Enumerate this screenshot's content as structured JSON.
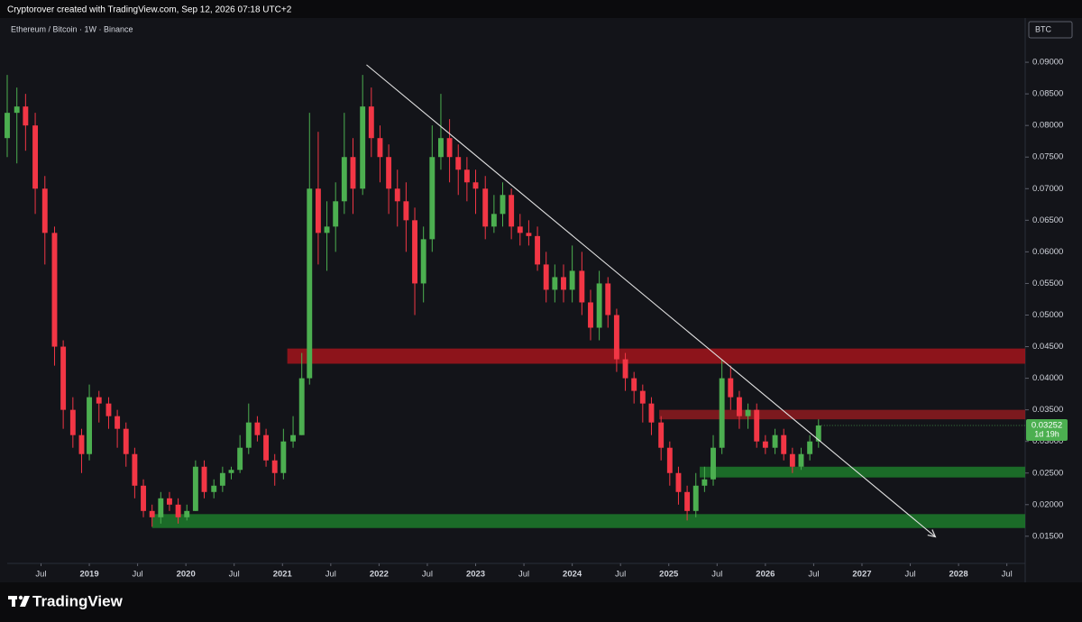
{
  "header": "Cryptorover created with TradingView.com, Sep 12, 2026 07:18 UTC+2",
  "logo": "TradingView",
  "chart_data": {
    "type": "candlestick",
    "title": "Ethereum / Bitcoin · 1W · Binance",
    "currency": "BTC",
    "up_color": "#4caf50",
    "down_color": "#f23645",
    "xlim": [
      2018.15,
      2028.69
    ],
    "ylim": [
      0.0107,
      0.097
    ],
    "xticks": [
      {
        "value": 2018.5,
        "label": "Jul"
      },
      2019,
      {
        "value": 2019.5,
        "label": "Jul"
      },
      2020,
      {
        "value": 2020.5,
        "label": "Jul"
      },
      2021,
      {
        "value": 2021.5,
        "label": "Jul"
      },
      2022,
      {
        "value": 2022.5,
        "label": "Jul"
      },
      2023,
      {
        "value": 2023.5,
        "label": "Jul"
      },
      2024,
      {
        "value": 2024.5,
        "label": "Jul"
      },
      2025,
      {
        "value": 2025.5,
        "label": "Jul"
      },
      2026,
      {
        "value": 2026.5,
        "label": "Jul"
      },
      2027,
      {
        "value": 2027.5,
        "label": "Jul"
      },
      2028,
      {
        "value": 2028.5,
        "label": "Jul"
      }
    ],
    "yticks": [
      {
        "value": 0.015,
        "label": "0.01500"
      },
      {
        "value": 0.02,
        "label": "0.02000"
      },
      {
        "value": 0.025,
        "label": "0.02500"
      },
      {
        "value": 0.03,
        "label": "0.03000"
      },
      {
        "value": 0.035,
        "label": "0.03500"
      },
      {
        "value": 0.04,
        "label": "0.04000"
      },
      {
        "value": 0.045,
        "label": "0.04500"
      },
      {
        "value": 0.05,
        "label": "0.05000"
      },
      {
        "value": 0.055,
        "label": "0.05500"
      },
      {
        "value": 0.06,
        "label": "0.06000"
      },
      {
        "value": 0.065,
        "label": "0.06500"
      },
      {
        "value": 0.07,
        "label": "0.07000"
      },
      {
        "value": 0.075,
        "label": "0.07500"
      },
      {
        "value": 0.08,
        "label": "0.08000"
      },
      {
        "value": 0.085,
        "label": "0.08500"
      },
      {
        "value": 0.09,
        "label": "0.09000"
      }
    ],
    "grid": false,
    "x": [
      2018.15,
      2018.25,
      2018.34,
      2018.44,
      2018.54,
      2018.64,
      2018.73,
      2018.83,
      2018.92,
      2019.0,
      2019.1,
      2019.2,
      2019.29,
      2019.38,
      2019.47,
      2019.56,
      2019.65,
      2019.74,
      2019.83,
      2019.92,
      2020.01,
      2020.1,
      2020.19,
      2020.29,
      2020.38,
      2020.47,
      2020.56,
      2020.65,
      2020.74,
      2020.83,
      2020.92,
      2021.01,
      2021.11,
      2021.2,
      2021.28,
      2021.37,
      2021.46,
      2021.55,
      2021.64,
      2021.73,
      2021.83,
      2021.92,
      2022.01,
      2022.1,
      2022.19,
      2022.28,
      2022.37,
      2022.46,
      2022.55,
      2022.64,
      2022.73,
      2022.82,
      2022.91,
      2023.0,
      2023.1,
      2023.19,
      2023.28,
      2023.37,
      2023.46,
      2023.55,
      2023.64,
      2023.73,
      2023.82,
      2023.91,
      2024.0,
      2024.1,
      2024.19,
      2024.28,
      2024.37,
      2024.46,
      2024.55,
      2024.64,
      2024.73,
      2024.82,
      2024.92,
      2025.01,
      2025.1,
      2025.19,
      2025.28,
      2025.37,
      2025.46,
      2025.55,
      2025.64,
      2025.73,
      2025.82,
      2025.91,
      2026.0,
      2026.1,
      2026.19,
      2026.28,
      2026.37,
      2026.46,
      2026.55
    ],
    "open": [
      0.078,
      0.082,
      0.083,
      0.08,
      0.07,
      0.063,
      0.045,
      0.035,
      0.031,
      0.028,
      0.037,
      0.036,
      0.034,
      0.032,
      0.028,
      0.023,
      0.019,
      0.018,
      0.021,
      0.02,
      0.018,
      0.019,
      0.026,
      0.022,
      0.023,
      0.025,
      0.0255,
      0.029,
      0.033,
      0.031,
      0.027,
      0.025,
      0.03,
      0.031,
      0.04,
      0.07,
      0.063,
      0.064,
      0.068,
      0.075,
      0.07,
      0.083,
      0.078,
      0.075,
      0.07,
      0.068,
      0.065,
      0.055,
      0.062,
      0.075,
      0.078,
      0.075,
      0.073,
      0.071,
      0.07,
      0.064,
      0.066,
      0.069,
      0.064,
      0.063,
      0.0625,
      0.058,
      0.054,
      0.056,
      0.054,
      0.057,
      0.052,
      0.048,
      0.055,
      0.05,
      0.043,
      0.04,
      0.038,
      0.036,
      0.033,
      0.029,
      0.025,
      0.022,
      0.019,
      0.023,
      0.024,
      0.029,
      0.04,
      0.037,
      0.034,
      0.035,
      0.03,
      0.029,
      0.031,
      0.028,
      0.026,
      0.028,
      0.03
    ],
    "high": [
      0.088,
      0.086,
      0.085,
      0.082,
      0.072,
      0.064,
      0.046,
      0.037,
      0.032,
      0.039,
      0.038,
      0.037,
      0.035,
      0.033,
      0.029,
      0.024,
      0.02,
      0.022,
      0.022,
      0.021,
      0.02,
      0.027,
      0.027,
      0.024,
      0.026,
      0.026,
      0.031,
      0.036,
      0.034,
      0.032,
      0.028,
      0.032,
      0.034,
      0.044,
      0.082,
      0.079,
      0.068,
      0.071,
      0.082,
      0.078,
      0.088,
      0.086,
      0.08,
      0.077,
      0.073,
      0.071,
      0.067,
      0.064,
      0.08,
      0.085,
      0.081,
      0.077,
      0.075,
      0.073,
      0.072,
      0.069,
      0.071,
      0.07,
      0.066,
      0.065,
      0.064,
      0.06,
      0.058,
      0.058,
      0.061,
      0.06,
      0.054,
      0.057,
      0.056,
      0.051,
      0.044,
      0.041,
      0.039,
      0.037,
      0.034,
      0.03,
      0.026,
      0.023,
      0.025,
      0.026,
      0.031,
      0.043,
      0.042,
      0.038,
      0.036,
      0.036,
      0.031,
      0.032,
      0.032,
      0.029,
      0.029,
      0.031,
      0.0335
    ],
    "low": [
      0.075,
      0.074,
      0.076,
      0.066,
      0.058,
      0.042,
      0.032,
      0.029,
      0.025,
      0.027,
      0.033,
      0.032,
      0.029,
      0.026,
      0.021,
      0.018,
      0.0165,
      0.017,
      0.019,
      0.017,
      0.0175,
      0.019,
      0.021,
      0.021,
      0.022,
      0.024,
      0.025,
      0.028,
      0.03,
      0.026,
      0.023,
      0.024,
      0.029,
      0.031,
      0.039,
      0.058,
      0.057,
      0.06,
      0.066,
      0.066,
      0.069,
      0.075,
      0.071,
      0.066,
      0.064,
      0.06,
      0.05,
      0.052,
      0.06,
      0.073,
      0.071,
      0.069,
      0.068,
      0.066,
      0.062,
      0.063,
      0.064,
      0.062,
      0.061,
      0.061,
      0.057,
      0.052,
      0.052,
      0.052,
      0.052,
      0.05,
      0.046,
      0.046,
      0.048,
      0.041,
      0.038,
      0.036,
      0.033,
      0.031,
      0.027,
      0.023,
      0.02,
      0.0175,
      0.018,
      0.022,
      0.023,
      0.028,
      0.035,
      0.032,
      0.032,
      0.029,
      0.028,
      0.028,
      0.027,
      0.025,
      0.0255,
      0.027,
      0.029
    ],
    "close": [
      0.082,
      0.083,
      0.08,
      0.07,
      0.063,
      0.045,
      0.035,
      0.031,
      0.028,
      0.037,
      0.036,
      0.034,
      0.032,
      0.028,
      0.023,
      0.019,
      0.018,
      0.021,
      0.02,
      0.018,
      0.019,
      0.026,
      0.022,
      0.023,
      0.025,
      0.0255,
      0.029,
      0.033,
      0.031,
      0.027,
      0.025,
      0.03,
      0.031,
      0.04,
      0.07,
      0.063,
      0.064,
      0.068,
      0.075,
      0.07,
      0.083,
      0.078,
      0.075,
      0.07,
      0.068,
      0.065,
      0.055,
      0.062,
      0.075,
      0.078,
      0.075,
      0.073,
      0.071,
      0.07,
      0.064,
      0.066,
      0.069,
      0.064,
      0.063,
      0.0625,
      0.058,
      0.054,
      0.056,
      0.054,
      0.057,
      0.052,
      0.048,
      0.055,
      0.05,
      0.043,
      0.04,
      0.038,
      0.036,
      0.033,
      0.029,
      0.025,
      0.022,
      0.019,
      0.023,
      0.024,
      0.029,
      0.04,
      0.037,
      0.034,
      0.035,
      0.03,
      0.029,
      0.031,
      0.028,
      0.026,
      0.028,
      0.03,
      0.03252
    ],
    "zones": [
      {
        "low": 0.0423,
        "high": 0.0447,
        "start": 2021.05,
        "color": "#a3141c"
      },
      {
        "low": 0.0335,
        "high": 0.035,
        "start": 2024.9,
        "color": "#8f1a20"
      },
      {
        "low": 0.0243,
        "high": 0.026,
        "start": 2025.32,
        "color": "#1d7a2c"
      },
      {
        "low": 0.0163,
        "high": 0.0185,
        "start": 2019.65,
        "color": "#1d7a2c"
      }
    ],
    "trendline": {
      "x": [
        2021.87,
        2027.76
      ],
      "y": [
        0.0896,
        0.0149
      ],
      "color": "#e0e0e0"
    },
    "last_price": 0.03252,
    "countdown": "1d 19h"
  }
}
